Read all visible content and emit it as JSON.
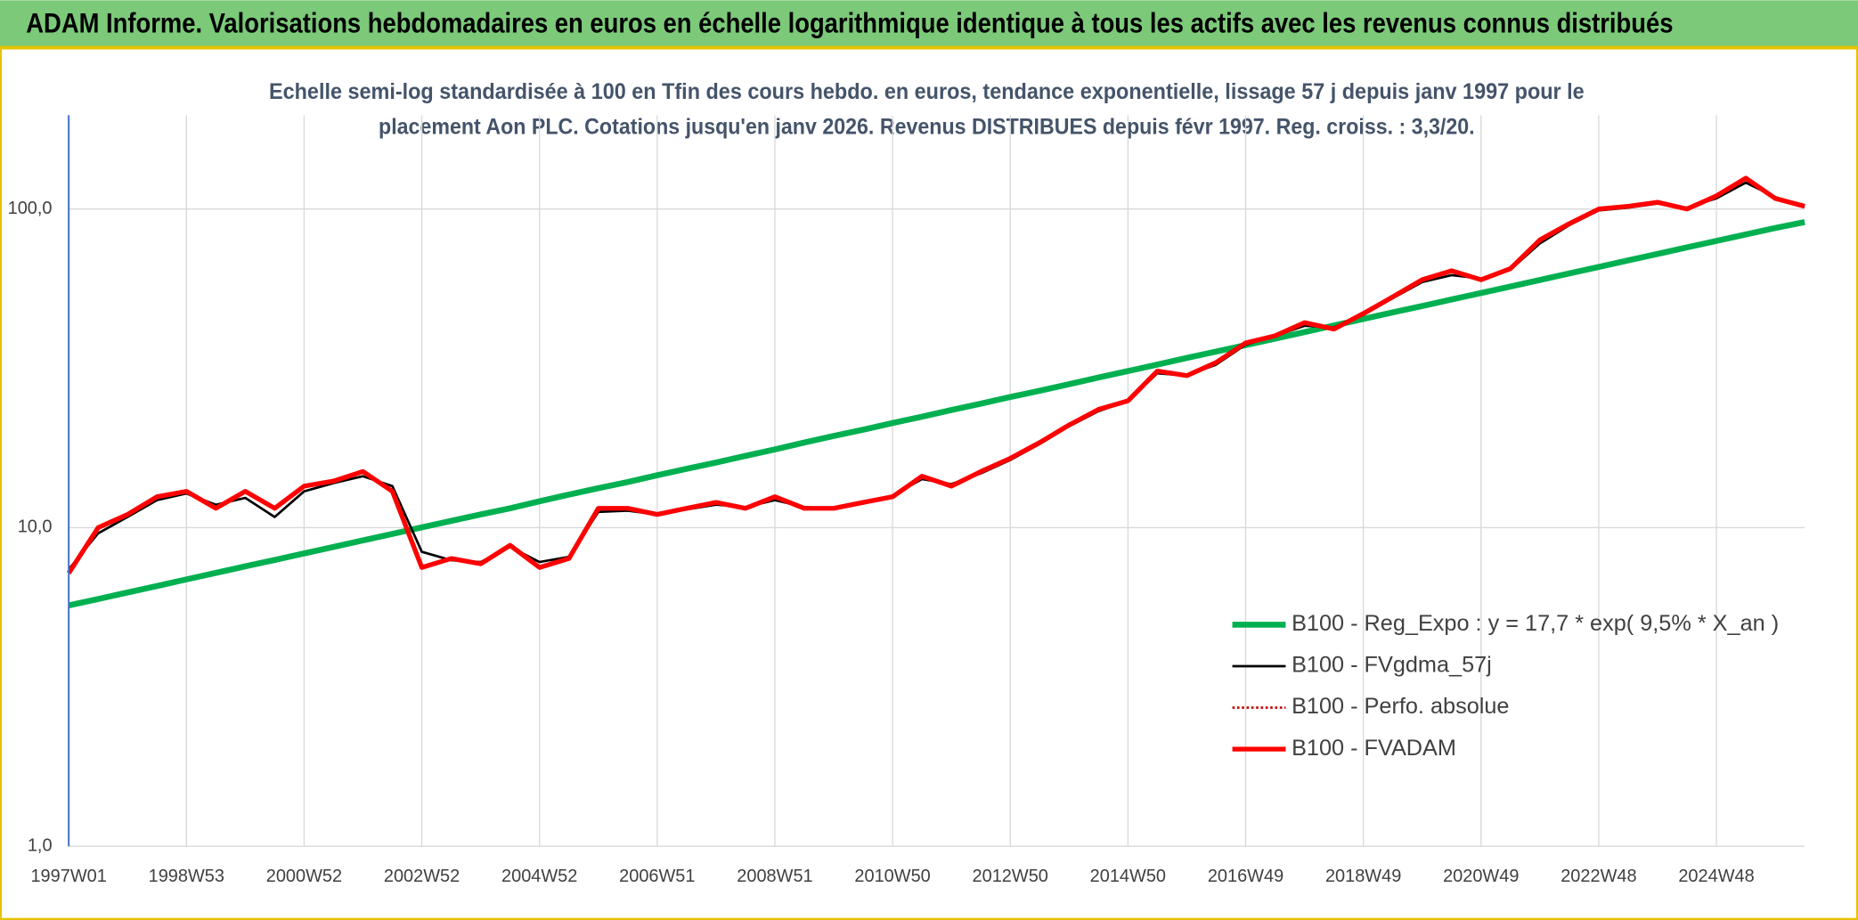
{
  "chart_data": {
    "type": "line",
    "title": "ADAM Informe. Valorisations hebdomadaires en euros en échelle logarithmique identique à tous les actifs avec les revenus connus distribués",
    "subtitle": [
      "Echelle semi-log standardisée à 100 en Tfin des cours hebdo. en euros, tendance exponentielle, lissage 57 j depuis janv 1997 pour le",
      "placement Aon PLC. Cotations jusqu'en janv 2026. Revenus DISTRIBUES depuis févr 1997. Reg. croiss. : 3,3/20."
    ],
    "categories": [
      "1997W01",
      null,
      null,
      null,
      "1998W53",
      null,
      null,
      null,
      "2000W52",
      null,
      null,
      null,
      "2002W52",
      null,
      null,
      null,
      "2004W52",
      null,
      null,
      null,
      "2006W51",
      null,
      null,
      null,
      "2008W51",
      null,
      null,
      null,
      "2010W50",
      null,
      null,
      null,
      "2012W50",
      null,
      null,
      null,
      "2014W50",
      null,
      null,
      null,
      "2016W49",
      null,
      null,
      null,
      "2018W49",
      null,
      null,
      null,
      "2020W49",
      null,
      null,
      null,
      "2022W48",
      null,
      null,
      null,
      "2024W48",
      null,
      null,
      null
    ],
    "series": [
      {
        "name": "B100 - Reg_Expo : y = 17,7 * exp( 9,5% *  X_an )",
        "color": "#00b050",
        "width": 5,
        "values": [
          5.7,
          5.97,
          6.26,
          6.56,
          6.88,
          7.21,
          7.56,
          7.92,
          8.3,
          8.7,
          9.12,
          9.56,
          10.02,
          10.5,
          11,
          11.5,
          12.1,
          12.7,
          13.3,
          13.9,
          14.6,
          15.3,
          16,
          16.8,
          17.6,
          18.5,
          19.4,
          20.3,
          21.3,
          22.3,
          23.4,
          24.5,
          25.7,
          26.9,
          28.2,
          29.6,
          31,
          32.5,
          34.1,
          35.7,
          37.4,
          39.2,
          41.1,
          43.1,
          45.2,
          47.4,
          49.6,
          52,
          54.5,
          57.1,
          59.9,
          62.8,
          65.8,
          69,
          72.3,
          75.8,
          79.4,
          83.2,
          87.2,
          91
        ]
      },
      {
        "name": "B100 - FVgdma_57j",
        "color": "#000000",
        "width": 2,
        "values": [
          7.4,
          9.6,
          10.8,
          12.2,
          12.8,
          11.8,
          12.4,
          10.8,
          13,
          13.8,
          14.5,
          13.5,
          8.4,
          7.9,
          7.8,
          8.7,
          7.8,
          8.1,
          11.2,
          11.3,
          11,
          11.4,
          11.8,
          11.6,
          12.2,
          11.6,
          11.5,
          11.9,
          12.6,
          14.2,
          13.7,
          14.8,
          16.3,
          18.3,
          20.8,
          23.2,
          25,
          30.5,
          30,
          32.5,
          37.5,
          40,
          43,
          42.5,
          46.5,
          52.5,
          59,
          62,
          60.5,
          64.5,
          78,
          89,
          99,
          101,
          104,
          101,
          108,
          121,
          109,
          102
        ]
      },
      {
        "name": "B100 - Perfo. absolue",
        "color": "#c00000",
        "width": 2,
        "line_style": "dotted",
        "values": [
          7.2,
          10,
          11,
          12.5,
          13,
          11.5,
          13,
          11.5,
          13.5,
          14,
          15,
          13,
          7.5,
          8,
          7.7,
          8.8,
          7.5,
          8,
          11.5,
          11.5,
          11,
          11.5,
          12,
          11.5,
          12.5,
          11.5,
          11.5,
          12,
          12.5,
          14.5,
          13.5,
          15,
          16.5,
          18.5,
          21,
          23.5,
          25,
          31,
          30,
          33,
          38,
          40,
          44,
          42,
          47,
          53,
          60,
          64,
          60,
          65,
          80,
          90,
          100,
          102,
          105,
          100,
          110,
          125,
          108,
          102
        ]
      },
      {
        "name": "B100 - FVADAM",
        "color": "#ff0000",
        "width": 4,
        "values": [
          7.2,
          10,
          11,
          12.5,
          13,
          11.5,
          13,
          11.5,
          13.5,
          14,
          15,
          13,
          7.5,
          8,
          7.7,
          8.8,
          7.5,
          8,
          11.5,
          11.5,
          11,
          11.5,
          12,
          11.5,
          12.5,
          11.5,
          11.5,
          12,
          12.5,
          14.5,
          13.5,
          15,
          16.5,
          18.5,
          21,
          23.5,
          25,
          31,
          30,
          33,
          38,
          40,
          44,
          42,
          47,
          53,
          60,
          64,
          60,
          65,
          80,
          90,
          100,
          102,
          105,
          100,
          110,
          125,
          108,
          102
        ]
      }
    ],
    "ylim": [
      1,
      197
    ],
    "yticks": [
      {
        "value": 1,
        "label": "1,0"
      },
      {
        "value": 10,
        "label": "10,0"
      },
      {
        "value": 100,
        "label": "100,0"
      }
    ],
    "log_scale": true,
    "grid": true,
    "legend": "lower right"
  }
}
